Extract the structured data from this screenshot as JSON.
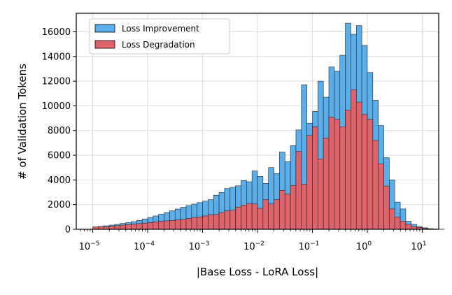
{
  "chart_data": {
    "type": "histogram",
    "title": "",
    "xlabel": "|Base Loss - LoRA Loss|",
    "ylabel": "# of Validation Tokens",
    "xscale": "log",
    "xlim_log10": [
      -5.3,
      1.3
    ],
    "ylim": [
      0,
      17500
    ],
    "yticks": [
      "0",
      "2000",
      "4000",
      "6000",
      "8000",
      "10000",
      "12000",
      "14000",
      "16000"
    ],
    "xticks": [
      {
        "base": "10",
        "exp": "−5"
      },
      {
        "base": "10",
        "exp": "−4"
      },
      {
        "base": "10",
        "exp": "−3"
      },
      {
        "base": "10",
        "exp": "−2"
      },
      {
        "base": "10",
        "exp": "−1"
      },
      {
        "base": "10",
        "exp": "0"
      },
      {
        "base": "10",
        "exp": "1"
      }
    ],
    "bin_start_log10": -5.0,
    "bin_width_log10": 0.1,
    "grid": true,
    "legend_position": "top-left",
    "series": [
      {
        "name": "Loss Improvement",
        "color": "#5aaeea",
        "values": [
          120,
          240,
          280,
          340,
          400,
          470,
          540,
          620,
          720,
          840,
          960,
          1080,
          1220,
          1360,
          1500,
          1640,
          1780,
          1920,
          2040,
          2160,
          2280,
          2400,
          2760,
          2980,
          3300,
          3400,
          3520,
          3950,
          3850,
          4730,
          4280,
          3720,
          5000,
          4520,
          6260,
          5480,
          6780,
          8050,
          11700,
          8600,
          9550,
          12000,
          10700,
          13150,
          12800,
          14100,
          16700,
          15800,
          16500,
          14900,
          12700,
          10450,
          8400,
          5800,
          4000,
          2200,
          1650,
          650,
          400,
          220,
          120,
          50,
          20,
          5
        ]
      },
      {
        "name": "Loss Degradation",
        "color": "#e0626a",
        "values": [
          200,
          230,
          200,
          250,
          290,
          340,
          380,
          420,
          460,
          500,
          550,
          600,
          640,
          680,
          720,
          760,
          800,
          880,
          960,
          1000,
          1080,
          1180,
          1200,
          1350,
          1500,
          1550,
          1800,
          1950,
          2100,
          2050,
          1700,
          2400,
          2050,
          2400,
          3150,
          2850,
          3550,
          6300,
          3650,
          7600,
          8300,
          5700,
          7400,
          9100,
          8900,
          8300,
          9650,
          11300,
          10300,
          9300,
          8900,
          7200,
          5300,
          3500,
          1650,
          1000,
          640,
          400,
          220,
          150,
          80,
          40,
          15,
          5
        ]
      }
    ]
  }
}
